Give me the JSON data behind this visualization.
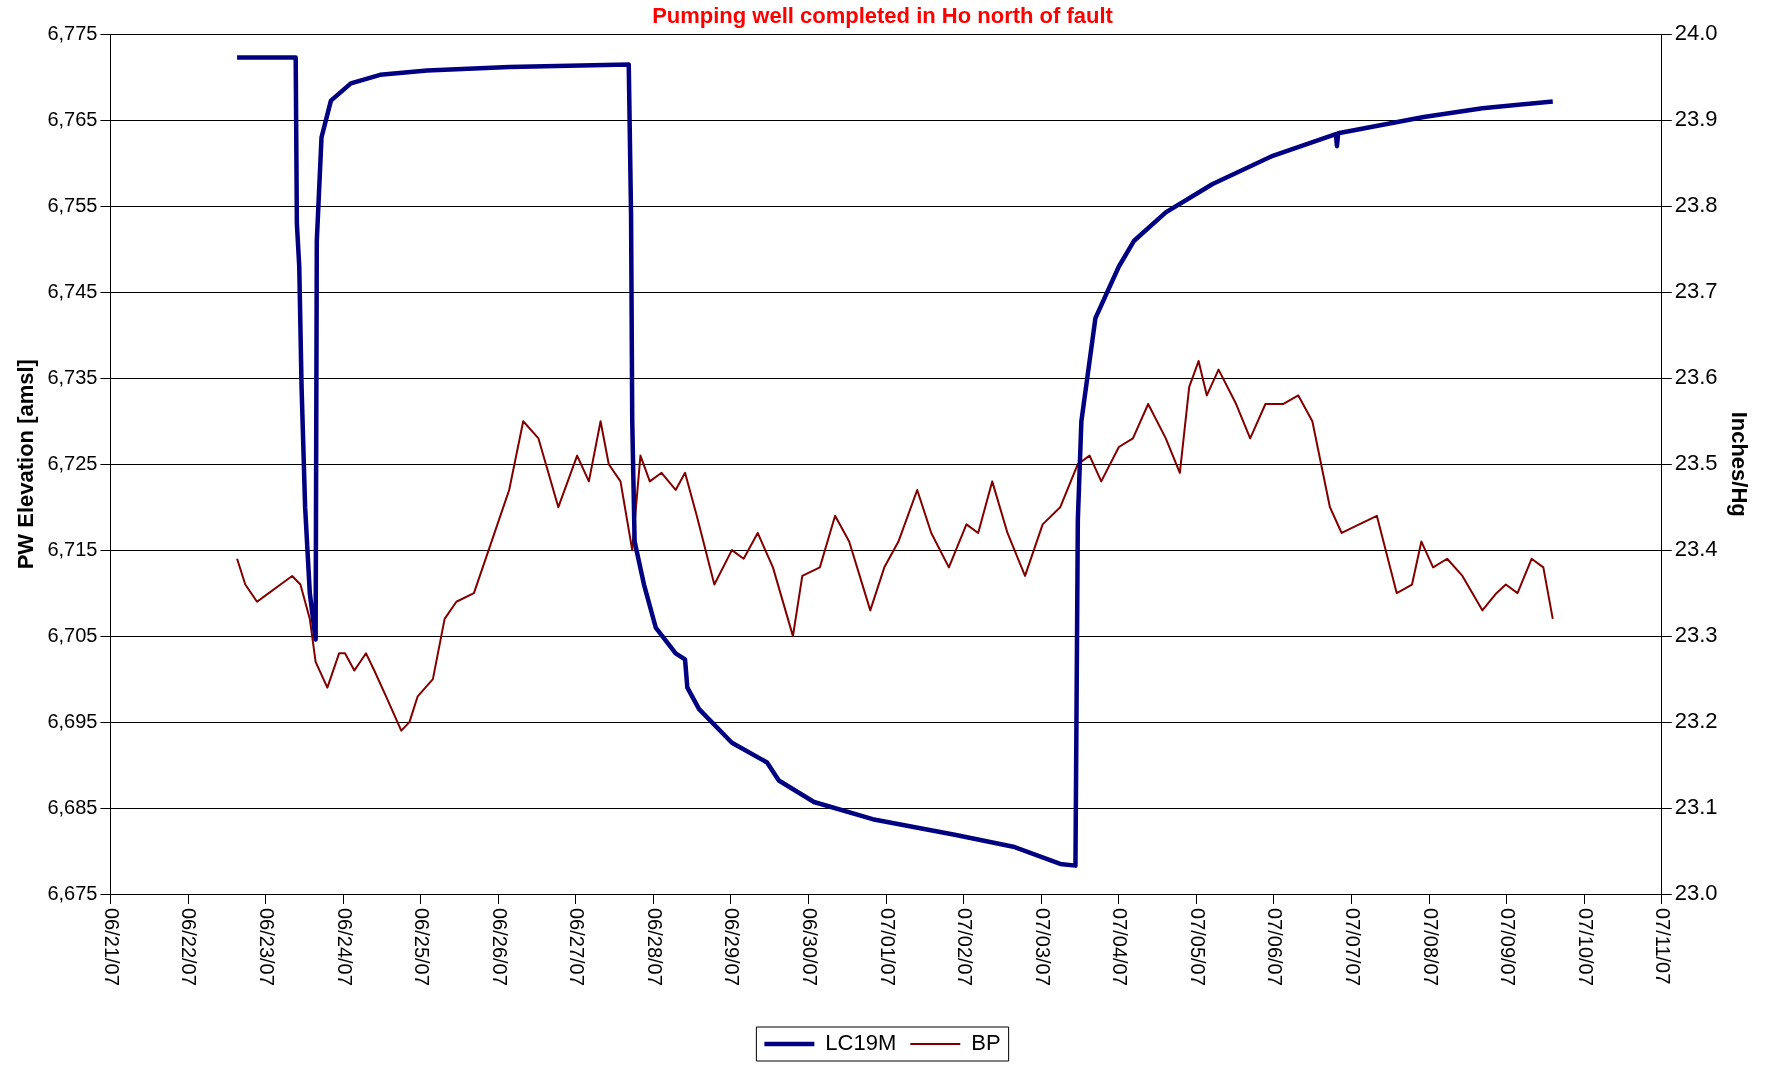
{
  "chart_data": {
    "type": "line",
    "title": "Pumping well completed in Ho north of fault",
    "ylabel": "PW Elevation [amsl]",
    "y2label": "Inches/Hg",
    "xlim": [
      "--06-21",
      "--07-11"
    ],
    "xticks": [
      {
        "value": "--06-21",
        "label": "06/21/07"
      },
      {
        "value": "--06-22",
        "label": "06/22/07"
      },
      {
        "value": "--06-23",
        "label": "06/23/07"
      },
      {
        "value": "--06-24",
        "label": "06/24/07"
      },
      {
        "value": "--06-25",
        "label": "06/25/07"
      },
      {
        "value": "--06-26",
        "label": "06/26/07"
      },
      {
        "value": "--06-27",
        "label": "06/27/07"
      },
      {
        "value": "--06-28",
        "label": "06/28/07"
      },
      {
        "value": "--06-29",
        "label": "06/29/07"
      },
      {
        "value": "--06-30",
        "label": "06/30/07"
      },
      {
        "value": "--07-01",
        "label": "07/01/07"
      },
      {
        "value": "--07-02",
        "label": "07/02/07"
      },
      {
        "value": "--07-03",
        "label": "07/03/07"
      },
      {
        "value": "--07-04",
        "label": "07/04/07"
      },
      {
        "value": "--07-05",
        "label": "07/05/07"
      },
      {
        "value": "--07-06",
        "label": "07/06/07"
      },
      {
        "value": "--07-07",
        "label": "07/07/07"
      },
      {
        "value": "--07-08",
        "label": "07/08/07"
      },
      {
        "value": "--07-09",
        "label": "07/09/07"
      },
      {
        "value": "--07-10",
        "label": "07/10/07"
      },
      {
        "value": "--07-11",
        "label": "07/11/07"
      }
    ],
    "ylim": [
      6675,
      6775
    ],
    "yticks": [
      {
        "value": 6675,
        "label": "6,675"
      },
      {
        "value": 6685,
        "label": "6,685"
      },
      {
        "value": 6695,
        "label": "6,695"
      },
      {
        "value": 6705,
        "label": "6,705"
      },
      {
        "value": 6715,
        "label": "6,715"
      },
      {
        "value": 6725,
        "label": "6,725"
      },
      {
        "value": 6735,
        "label": "6,735"
      },
      {
        "value": 6745,
        "label": "6,745"
      },
      {
        "value": 6755,
        "label": "6,755"
      },
      {
        "value": 6765,
        "label": "6,765"
      },
      {
        "value": 6775,
        "label": "6,775"
      }
    ],
    "y2lim": [
      23,
      24
    ],
    "y2ticks": [
      {
        "value": 23,
        "label": "23.0"
      },
      {
        "value": 23.1,
        "label": "23.1"
      },
      {
        "value": 23.2,
        "label": "23.2"
      },
      {
        "value": 23.3,
        "label": "23.3"
      },
      {
        "value": 23.4,
        "label": "23.4"
      },
      {
        "value": 23.5,
        "label": "23.5"
      },
      {
        "value": 23.6,
        "label": "23.6"
      },
      {
        "value": 23.7,
        "label": "23.7"
      },
      {
        "value": 23.8,
        "label": "23.8"
      },
      {
        "value": 23.9,
        "label": "23.9"
      },
      {
        "value": 24,
        "label": "24.0"
      }
    ],
    "grid": "y",
    "legend": "bottom",
    "marker": "none",
    "line_style": "solid",
    "series": [
      {
        "name": "LC19M",
        "color": "#000080",
        "x": [
          "--06-22T15:11",
          "--06-23T09:19",
          "--06-23T09:41",
          "--06-23T10:25",
          "--06-23T11:08",
          "--06-23T12:14",
          "--06-23T13:41",
          "--06-23T15:29",
          "--06-23T15:51",
          "--06-23T17:18",
          "--06-23T20:13",
          "--06-24T02:23",
          "--06-24T11:27",
          "--06-25T01:58",
          "--06-26T03:22",
          "--06-27T16:22",
          "--06-27T17:05",
          "--06-27T17:27",
          "--06-27T18:11",
          "--06-27T21:05",
          "--06-28T00:43",
          "--06-28T06:53",
          "--06-28T09:47",
          "--06-28T10:30",
          "--06-28T14:08",
          "--06-29T00:17",
          "--06-29T11:10",
          "--06-29T14:48",
          "--06-30T01:41",
          "--06-30T19:50",
          "--07-01T21:13",
          "--07-02T15:22",
          "--07-03T05:53",
          "--07-03T10:35",
          "--07-03T11:19",
          "--07-03T12:25",
          "--07-03T16:46",
          "--07-04T00:01",
          "--07-04T04:44",
          "--07-04T14:32",
          "--07-05T05:02",
          "--07-05T23:11",
          "--07-06T19:08",
          "--07-06T19:30",
          "--07-06T19:52",
          "--07-07T22:21",
          "--07-08T16:29",
          "--07-09T14:16"
        ],
        "values": [
          6772.3,
          6772.3,
          6753,
          6748,
          6734,
          6720,
          6710,
          6704.6,
          6751,
          6763,
          6767.3,
          6769.3,
          6770.3,
          6770.8,
          6771.2,
          6771.5,
          6754,
          6730,
          6716,
          6711,
          6706,
          6703,
          6702.3,
          6699,
          6696.5,
          6692.6,
          6690.3,
          6688.2,
          6685.7,
          6683.7,
          6681.9,
          6680.5,
          6678.5,
          6678.3,
          6718.5,
          6730,
          6742,
          6748,
          6751,
          6754.3,
          6757.6,
          6760.8,
          6763.4,
          6762,
          6763.5,
          6765.4,
          6766.4,
          6767.2
        ]
      },
      {
        "name": "BP",
        "color": "#800000",
        "axis": "y2",
        "x": [
          "--06-22T15:11",
          "--06-22T17:43",
          "--06-22T21:21",
          "--06-23T00:59",
          "--06-23T04:37",
          "--06-23T08:14",
          "--06-23T10:47",
          "--06-23T13:41",
          "--06-23T15:29",
          "--06-23T19:07",
          "--06-23T22:45",
          "--06-24T00:34",
          "--06-24T03:28",
          "--06-24T07:05",
          "--06-24T09:38",
          "--06-24T13:16",
          "--06-24T17:59",
          "--06-24T20:31",
          "--06-24T23:04",
          "--06-25T03:46",
          "--06-25T07:24",
          "--06-25T11:02",
          "--06-25T16:28",
          "--06-25T21:55",
          "--06-26T03:22",
          "--06-26T07:43",
          "--06-26T12:26",
          "--06-26T18:35",
          "--06-27T00:24",
          "--06-27T04:02",
          "--06-27T07:39",
          "--06-27T10:11",
          "--06-27T13:49",
          "--06-27T17:27",
          "--06-27T19:59",
          "--06-27T22:53",
          "--06-28T02:31",
          "--06-28T06:53",
          "--06-28T09:47",
          "--06-28T13:25",
          "--06-28T18:51",
          "--06-29T00:17",
          "--06-29T03:55",
          "--06-29T08:16",
          "--06-29T12:59",
          "--06-29T19:10",
          "--06-29T22:04",
          "--06-30T03:30",
          "--06-30T08:13",
          "--06-30T12:34",
          "--06-30T19:06",
          "--06-30T23:27",
          "--07-01T03:49",
          "--07-01T09:37",
          "--07-01T13:58",
          "--07-01T19:25",
          "--07-02T00:51",
          "--07-02T04:29",
          "--07-02T08:50",
          "--07-02T13:33",
          "--07-02T18:59",
          "--07-03T00:26",
          "--07-03T05:53",
          "--07-03T11:19",
          "--07-03T14:57",
          "--07-03T18:34",
          "--07-04T00:01",
          "--07-04T04:22",
          "--07-04T09:05",
          "--07-04T14:32",
          "--07-04T18:53",
          "--07-04T21:47",
          "--07-05T00:41",
          "--07-05T03:14",
          "--07-05T06:52",
          "--07-05T12:18",
          "--07-05T16:39",
          "--07-05T21:22",
          "--07-06T02:49",
          "--07-06T07:32",
          "--07-06T11:53",
          "--07-06T17:19",
          "--07-06T20:57",
          "--07-07T02:23",
          "--07-07T07:50",
          "--07-07T14:00",
          "--07-07T18:43",
          "--07-07T21:37",
          "--07-08T01:15",
          "--07-08T05:36",
          "--07-08T10:19",
          "--07-08T16:29",
          "--07-08T20:50",
          "--07-08T23:44",
          "--07-09T03:22",
          "--07-09T07:43",
          "--07-09T11:21",
          "--07-09T14:16"
        ],
        "values": [
          23.39,
          23.36,
          23.34,
          23.35,
          23.36,
          23.37,
          23.36,
          23.32,
          23.27,
          23.24,
          23.28,
          23.28,
          23.26,
          23.28,
          23.26,
          23.23,
          23.19,
          23.2,
          23.23,
          23.25,
          23.32,
          23.34,
          23.35,
          23.41,
          23.47,
          23.55,
          23.53,
          23.45,
          23.51,
          23.48,
          23.55,
          23.5,
          23.48,
          23.4,
          23.51,
          23.48,
          23.49,
          23.47,
          23.49,
          23.44,
          23.36,
          23.4,
          23.39,
          23.42,
          23.38,
          23.3,
          23.37,
          23.38,
          23.44,
          23.41,
          23.33,
          23.38,
          23.41,
          23.47,
          23.42,
          23.38,
          23.43,
          23.42,
          23.48,
          23.42,
          23.37,
          23.43,
          23.45,
          23.5,
          23.51,
          23.48,
          23.52,
          23.53,
          23.57,
          23.53,
          23.49,
          23.59,
          23.62,
          23.58,
          23.61,
          23.57,
          23.53,
          23.57,
          23.57,
          23.58,
          23.55,
          23.45,
          23.42,
          23.43,
          23.44,
          23.35,
          23.36,
          23.41,
          23.38,
          23.39,
          23.37,
          23.33,
          23.35,
          23.36,
          23.35,
          23.39,
          23.38,
          23.32
        ]
      }
    ]
  }
}
